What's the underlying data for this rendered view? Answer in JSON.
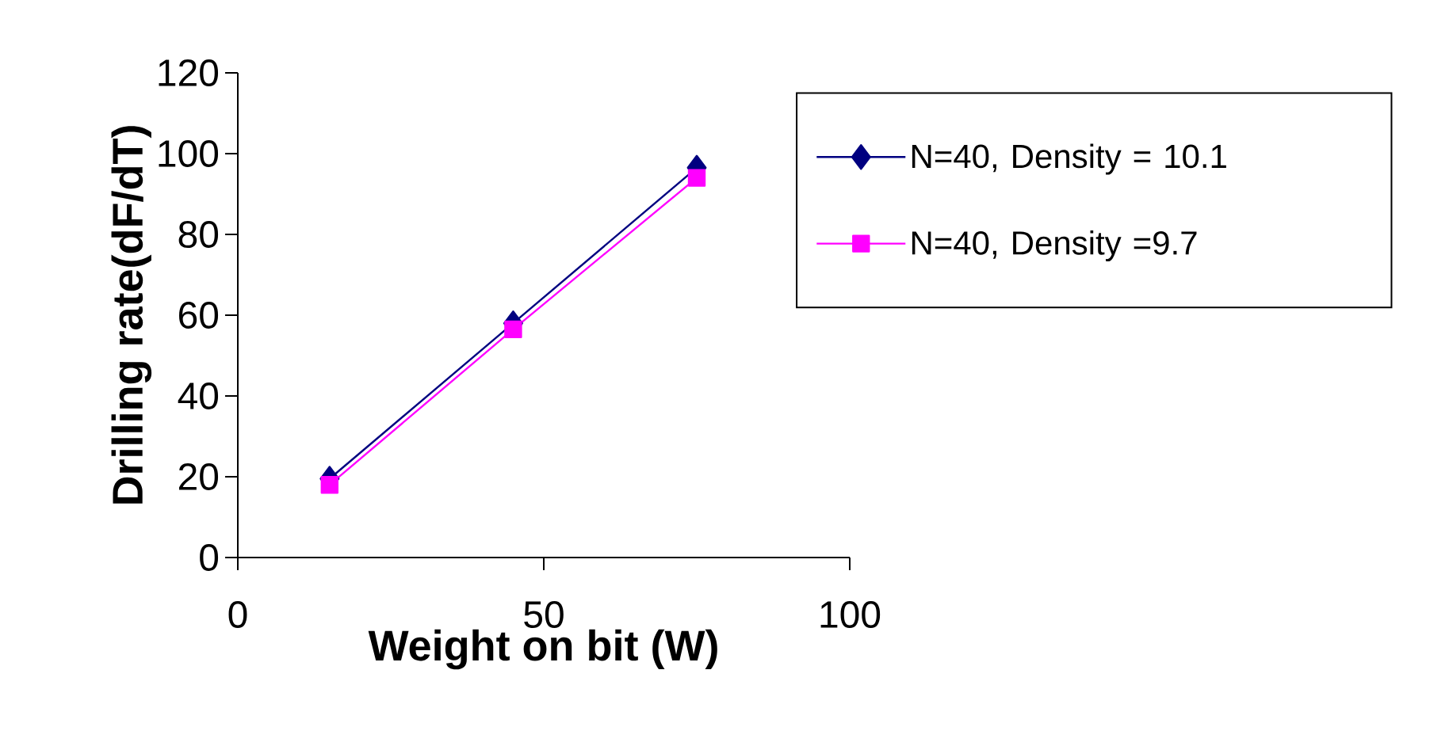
{
  "chart_data": {
    "type": "line",
    "xlabel": "Weight on bit (W)",
    "ylabel": "Drilling rate(dF/dT)",
    "x": [
      15,
      45,
      75
    ],
    "series": [
      {
        "name": "N=40,  Density = 10.1",
        "color": "#000080",
        "values": [
          19.5,
          58,
          96.5
        ],
        "marker": "diamond"
      },
      {
        "name": "N=40,  Density =9.7",
        "color": "#ff00ff",
        "values": [
          18,
          56.5,
          94
        ],
        "marker": "square"
      }
    ],
    "xlim": [
      0,
      100
    ],
    "xticks": [
      0,
      50,
      100
    ],
    "ylim": [
      0,
      120
    ],
    "yticks": [
      0,
      20,
      40,
      60,
      80,
      100,
      120
    ],
    "legend": "right",
    "grid": false,
    "line_style": "solid"
  }
}
